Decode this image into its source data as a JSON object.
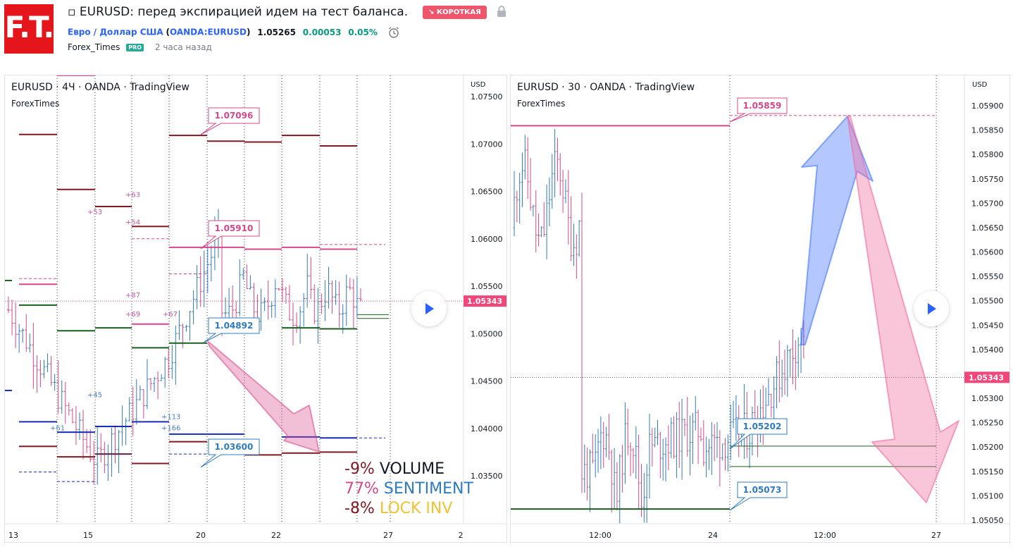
{
  "header": {
    "logo_text": "F.T.",
    "title": "▫ EURUSD: перед экспирацией идем на тест баланса.",
    "direction_badge": "↘ КОРОТКАЯ",
    "symbol_name": "Евро / Доллар США",
    "symbol_code": "OANDA:EURUSD",
    "price": "1.05265",
    "change": "0.00053",
    "change_percent": "0.05%",
    "author": "Forex_Times",
    "author_badge": "PRO",
    "time_ago": "2 часа назад"
  },
  "colors": {
    "red_brand": "#e4161b",
    "badge_short": "#f0556b",
    "up_green": "#089981",
    "link_blue": "#2962ff",
    "magenta": "#d6488a",
    "dark_red": "#801922",
    "green_level": "#1b5e20",
    "navy_level": "#1a2bb8",
    "sentiment_blue": "#2f7bbf",
    "lock_gold": "#f2c230"
  },
  "chart_left": {
    "title": "EURUSD · 4Ч · OANDA · TradingView",
    "subtitle": "ForexTimes",
    "currency": "USD",
    "y_ticks": [
      "1.07500",
      "1.07000",
      "1.06500",
      "1.06000",
      "1.05500",
      "1.05000",
      "1.04500",
      "1.04000",
      "1.03500"
    ],
    "x_ticks": [
      "13",
      "15",
      "20",
      "22",
      "27",
      "2"
    ],
    "current_price": "1.05343",
    "callouts": [
      "1.07096",
      "1.05910",
      "1.04892",
      "1.03600"
    ],
    "small_labels": [
      "+63",
      "+53",
      "+54",
      "+87",
      "+69",
      "+67",
      "+45",
      "+61",
      "+113",
      "+166"
    ],
    "legend": {
      "volume_pct": "-9%",
      "volume_label": "VOLUME",
      "sentiment_pct": "77%",
      "sentiment_label": "SENTIMENT",
      "lock_pct": "-8%",
      "lock_label": "LOCK INV"
    }
  },
  "chart_right": {
    "title": "EURUSD · 30 · OANDA · TradingView",
    "subtitle": "ForexTimes",
    "currency": "USD",
    "y_ticks": [
      "1.05900",
      "1.05850",
      "1.05800",
      "1.05750",
      "1.05700",
      "1.05650",
      "1.05600",
      "1.05550",
      "1.05500",
      "1.05450",
      "1.05400",
      "1.05300",
      "1.05250",
      "1.05200",
      "1.05150",
      "1.05100",
      "1.05050"
    ],
    "x_ticks": [
      "12:00",
      "24",
      "12:00",
      "27"
    ],
    "current_price": "1.05343",
    "callouts": [
      "1.05859",
      "1.05202",
      "1.05073"
    ]
  }
}
